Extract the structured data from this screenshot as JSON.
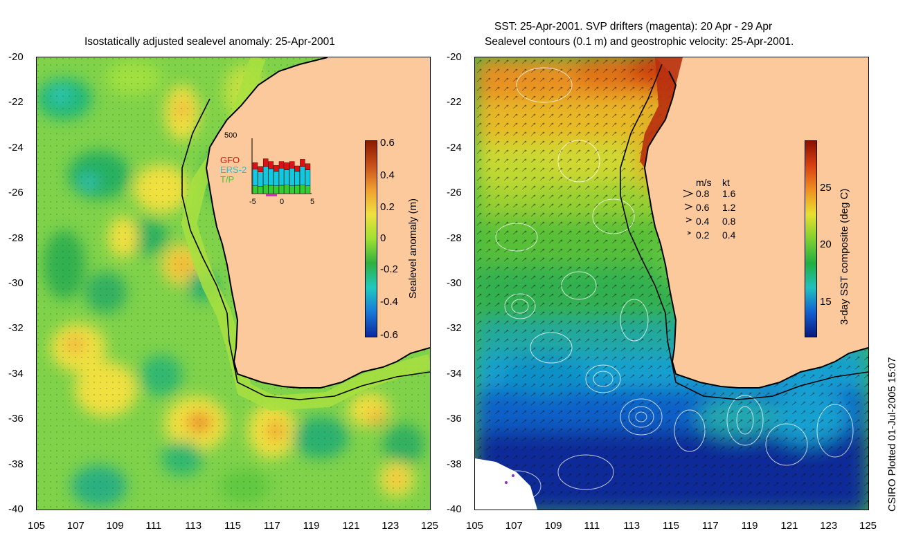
{
  "left_panel": {
    "title": "Isostatically adjusted sealevel anomaly: 25-Apr-2001",
    "colorbar": {
      "label": "Sealevel anomaly (m)",
      "ticks": [
        "0.6",
        "0.4",
        "0.2",
        "0",
        "-0.2",
        "-0.4",
        "-0.6"
      ],
      "stops": [
        "#8b1a00",
        "#c8501a",
        "#f0a030",
        "#f0e040",
        "#a0e030",
        "#30b040",
        "#20c8c0",
        "#1878d8",
        "#0a2a9c"
      ]
    },
    "inset": {
      "ymax_label": "500",
      "legend": [
        {
          "label": "GFO",
          "color": "#e01010"
        },
        {
          "label": "ERS-2",
          "color": "#10c8e0"
        },
        {
          "label": "T/P",
          "color": "#30d030"
        }
      ],
      "x_ticks": [
        "-5",
        "0",
        "5"
      ],
      "bars": [
        {
          "tp": 0.14,
          "ers": 0.3,
          "gfo": 0.12
        },
        {
          "tp": 0.13,
          "ers": 0.26,
          "gfo": 0.1
        },
        {
          "tp": 0.16,
          "ers": 0.33,
          "gfo": 0.14
        },
        {
          "tp": 0.15,
          "ers": 0.3,
          "gfo": 0.13
        },
        {
          "tp": 0.14,
          "ers": 0.26,
          "gfo": 0.11
        },
        {
          "tp": 0.15,
          "ers": 0.31,
          "gfo": 0.12
        },
        {
          "tp": 0.16,
          "ers": 0.27,
          "gfo": 0.13
        },
        {
          "tp": 0.14,
          "ers": 0.32,
          "gfo": 0.12
        },
        {
          "tp": 0.15,
          "ers": 0.25,
          "gfo": 0.1
        },
        {
          "tp": 0.16,
          "ers": 0.33,
          "gfo": 0.13
        },
        {
          "tp": 0.14,
          "ers": 0.29,
          "gfo": 0.11
        }
      ]
    }
  },
  "right_panel": {
    "title_line1": "SST: 25-Apr-2001. SVP drifters (magenta): 20 Apr - 29 Apr",
    "title_line2": "Sealevel contours (0.1 m) and geostrophic velocity: 25-Apr-2001.",
    "colorbar": {
      "label": "3-day SST composite (deg C)",
      "ticks": [
        "25",
        "20",
        "15"
      ],
      "stops": [
        "#8b1000",
        "#d84010",
        "#f09020",
        "#e8e030",
        "#80d030",
        "#20b040",
        "#20c0c0",
        "#1060d0",
        "#081880"
      ]
    },
    "velocity_legend": {
      "header_ms": "m/s",
      "header_kt": "kt",
      "rows": [
        {
          "ms": "0.8",
          "kt": "1.6"
        },
        {
          "ms": "0.6",
          "kt": "1.2"
        },
        {
          "ms": "0.4",
          "kt": "0.8"
        },
        {
          "ms": "0.2",
          "kt": "0.4"
        }
      ]
    }
  },
  "axes": {
    "x_ticks": [
      "105",
      "107",
      "109",
      "111",
      "113",
      "115",
      "117",
      "119",
      "121",
      "123",
      "125"
    ],
    "y_ticks": [
      "-20",
      "-22",
      "-24",
      "-26",
      "-28",
      "-30",
      "-32",
      "-34",
      "-36",
      "-38",
      "-40"
    ]
  },
  "land_color": "#fcc99c",
  "credit": "CSIRO Plotted 01-Jul-2005 15:07"
}
